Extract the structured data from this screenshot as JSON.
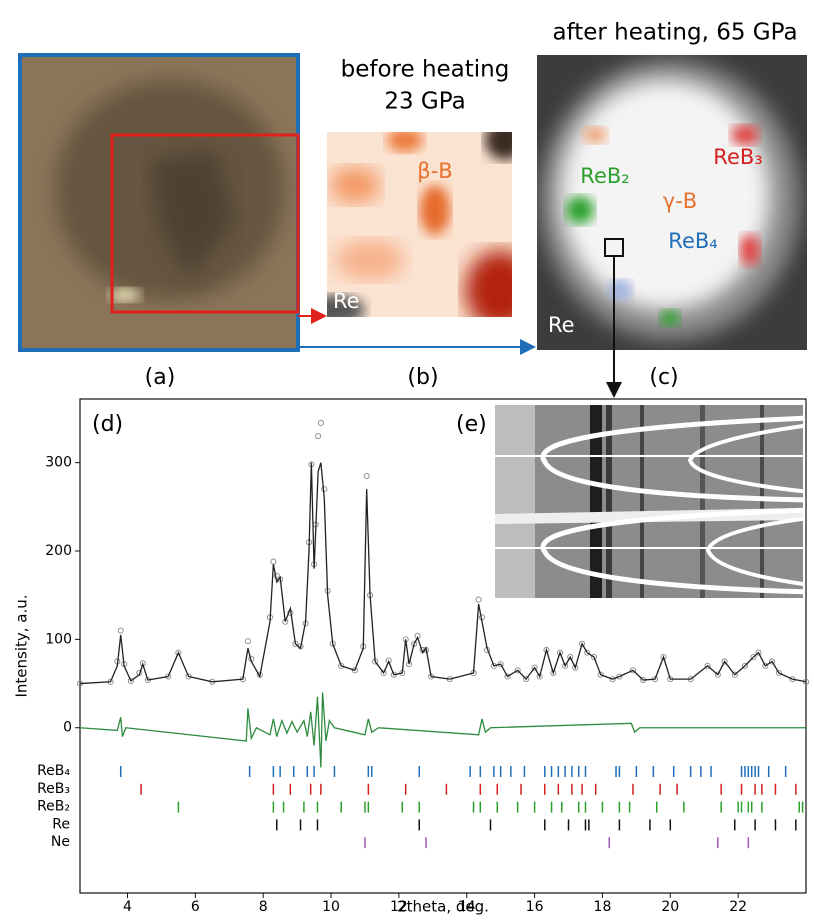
{
  "panels": {
    "a": {
      "label": "(a)"
    },
    "b": {
      "label": "(b)",
      "title_line1": "before heating",
      "title_line2": "23 GPa",
      "phase": "β-B",
      "substrate": "Re"
    },
    "c": {
      "label": "(c)",
      "title": "after heating, 65 GPa",
      "phases": [
        "ReB₃",
        "ReB₂",
        "γ-B",
        "ReB₄"
      ],
      "substrate": "Re"
    },
    "d": {
      "label": "(d)"
    },
    "e": {
      "label": "(e)"
    }
  },
  "chart_data": {
    "type": "line",
    "xlabel": "2theta, deg.",
    "ylabel": "Intensity, a.u.",
    "xlim": [
      2.6,
      24.0
    ],
    "ylim": [
      -187,
      372
    ],
    "xticks": [
      4,
      6,
      8,
      10,
      12,
      14,
      16,
      18,
      20,
      22
    ],
    "yticks": [
      0,
      100,
      200,
      300
    ],
    "series": [
      {
        "style": "observed",
        "color": "#888888",
        "x": [
          2.6,
          3.5,
          3.7,
          3.8,
          3.9,
          4.1,
          4.35,
          4.45,
          4.6,
          5.2,
          5.5,
          5.8,
          6.5,
          7.4,
          7.55,
          7.65,
          7.9,
          8.2,
          8.3,
          8.4,
          8.5,
          8.65,
          8.8,
          8.95,
          9.1,
          9.25,
          9.35,
          9.42,
          9.5,
          9.55,
          9.62,
          9.7,
          9.8,
          9.9,
          10.05,
          10.3,
          10.7,
          10.95,
          11.05,
          11.15,
          11.3,
          11.55,
          11.7,
          11.85,
          12.1,
          12.2,
          12.3,
          12.45,
          12.55,
          12.7,
          12.8,
          12.95,
          13.5,
          14.2,
          14.35,
          14.45,
          14.6,
          14.8,
          15.0,
          15.2,
          15.5,
          15.75,
          16.0,
          16.15,
          16.35,
          16.55,
          16.75,
          16.9,
          17.05,
          17.2,
          17.4,
          17.55,
          17.75,
          17.95,
          18.3,
          18.5,
          18.9,
          19.2,
          19.55,
          19.8,
          20.0,
          20.6,
          21.1,
          21.4,
          21.6,
          21.9,
          22.2,
          22.45,
          22.6,
          22.8,
          23.0,
          23.2,
          23.6,
          24.0
        ],
        "values": [
          50,
          52,
          75,
          110,
          72,
          53,
          62,
          73,
          54,
          58,
          85,
          58,
          52,
          55,
          98,
          78,
          60,
          125,
          188,
          172,
          168,
          120,
          130,
          95,
          92,
          118,
          210,
          298,
          185,
          230,
          330,
          345,
          270,
          155,
          95,
          70,
          65,
          92,
          285,
          150,
          75,
          62,
          76,
          60,
          62,
          100,
          72,
          95,
          104,
          88,
          88,
          58,
          55,
          62,
          145,
          125,
          88,
          70,
          72,
          58,
          65,
          55,
          68,
          58,
          88,
          62,
          85,
          70,
          80,
          68,
          95,
          85,
          80,
          60,
          55,
          58,
          65,
          54,
          55,
          80,
          55,
          55,
          70,
          60,
          75,
          60,
          70,
          80,
          85,
          70,
          75,
          62,
          55,
          52
        ]
      },
      {
        "style": "calculated",
        "color": "#222222",
        "x": [
          2.6,
          3.5,
          3.7,
          3.8,
          3.9,
          4.1,
          4.35,
          4.45,
          4.6,
          5.2,
          5.5,
          5.8,
          6.5,
          7.4,
          7.55,
          7.65,
          7.9,
          8.2,
          8.3,
          8.4,
          8.5,
          8.65,
          8.8,
          8.95,
          9.1,
          9.25,
          9.35,
          9.42,
          9.5,
          9.55,
          9.62,
          9.7,
          9.8,
          9.9,
          10.05,
          10.3,
          10.7,
          10.95,
          11.05,
          11.15,
          11.3,
          11.55,
          11.7,
          11.85,
          12.1,
          12.2,
          12.3,
          12.45,
          12.55,
          12.7,
          12.8,
          12.95,
          13.5,
          14.2,
          14.35,
          14.45,
          14.6,
          14.8,
          15.0,
          15.2,
          15.5,
          15.75,
          16.0,
          16.15,
          16.35,
          16.55,
          16.75,
          16.9,
          17.05,
          17.2,
          17.4,
          17.55,
          17.75,
          17.95,
          18.3,
          18.5,
          18.9,
          19.2,
          19.55,
          19.8,
          20.0,
          20.6,
          21.1,
          21.4,
          21.6,
          21.9,
          22.2,
          22.45,
          22.6,
          22.8,
          23.0,
          23.2,
          23.6,
          24.0
        ],
        "values": [
          50,
          52,
          70,
          105,
          70,
          53,
          60,
          72,
          54,
          58,
          85,
          58,
          52,
          55,
          90,
          75,
          58,
          120,
          185,
          165,
          170,
          120,
          135,
          95,
          90,
          120,
          200,
          300,
          180,
          225,
          290,
          300,
          260,
          150,
          95,
          70,
          65,
          90,
          270,
          150,
          75,
          62,
          75,
          60,
          62,
          100,
          72,
          95,
          102,
          85,
          90,
          58,
          55,
          62,
          140,
          120,
          90,
          70,
          72,
          58,
          65,
          55,
          68,
          58,
          88,
          62,
          85,
          70,
          80,
          68,
          95,
          85,
          80,
          60,
          55,
          58,
          65,
          54,
          55,
          80,
          55,
          55,
          70,
          60,
          75,
          60,
          70,
          80,
          85,
          70,
          75,
          62,
          55,
          52
        ]
      },
      {
        "style": "difference",
        "color": "#2e8b3e",
        "x": [
          2.6,
          3.7,
          3.8,
          3.85,
          3.95,
          7.5,
          7.55,
          7.65,
          7.8,
          8.2,
          8.3,
          8.4,
          8.55,
          8.7,
          8.85,
          9.0,
          9.2,
          9.3,
          9.4,
          9.5,
          9.6,
          9.7,
          9.75,
          9.85,
          9.95,
          10.1,
          11.0,
          11.1,
          11.2,
          11.4,
          14.35,
          14.45,
          14.55,
          14.7,
          18.85,
          18.95,
          19.1,
          24.0
        ],
        "values": [
          0,
          -3,
          12,
          -10,
          0,
          -15,
          22,
          -12,
          0,
          -8,
          10,
          -10,
          8,
          -6,
          7,
          -5,
          8,
          -10,
          18,
          -20,
          35,
          -45,
          40,
          -15,
          8,
          0,
          -8,
          10,
          -5,
          0,
          -8,
          10,
          -5,
          0,
          5,
          -5,
          0,
          0
        ]
      }
    ],
    "phases": [
      {
        "name": "ReB₄",
        "color": "#1f6fb8",
        "positions": [
          3.8,
          7.6,
          8.3,
          8.5,
          8.9,
          9.3,
          9.5,
          10.1,
          11.1,
          11.2,
          12.6,
          14.1,
          14.4,
          14.8,
          15.0,
          15.3,
          15.7,
          16.3,
          16.5,
          16.7,
          16.9,
          17.1,
          17.3,
          17.5,
          18.4,
          18.5,
          19.0,
          19.5,
          20.1,
          20.6,
          20.9,
          21.2,
          22.1,
          22.2,
          22.3,
          22.4,
          22.5,
          22.6,
          22.9,
          23.4
        ]
      },
      {
        "name": "ReB₃",
        "color": "#d62020",
        "positions": [
          4.4,
          8.3,
          8.8,
          9.4,
          9.7,
          11.1,
          12.2,
          13.4,
          14.4,
          14.9,
          15.6,
          16.3,
          16.7,
          17.1,
          17.4,
          17.8,
          18.9,
          19.7,
          20.2,
          21.5,
          22.1,
          22.5,
          22.7,
          23.1,
          23.7
        ]
      },
      {
        "name": "ReB₂",
        "color": "#2ca02c",
        "positions": [
          5.5,
          8.3,
          8.6,
          9.2,
          9.6,
          10.3,
          11.0,
          11.1,
          12.1,
          12.6,
          14.2,
          14.4,
          14.9,
          15.5,
          16.0,
          16.5,
          16.8,
          17.3,
          17.5,
          18.0,
          18.5,
          18.8,
          19.6,
          20.4,
          21.5,
          22.0,
          22.1,
          22.3,
          22.4,
          22.7,
          23.8,
          23.9
        ]
      },
      {
        "name": "Re",
        "color": "#111111",
        "positions": [
          8.4,
          9.1,
          9.6,
          12.6,
          14.7,
          16.3,
          17.0,
          17.5,
          17.6,
          18.5,
          19.4,
          20.0,
          21.9,
          22.5,
          23.1,
          23.7
        ]
      },
      {
        "name": "Ne",
        "color": "#9b59b6",
        "positions": [
          11.0,
          12.8,
          18.2,
          21.4,
          22.3
        ]
      }
    ]
  }
}
